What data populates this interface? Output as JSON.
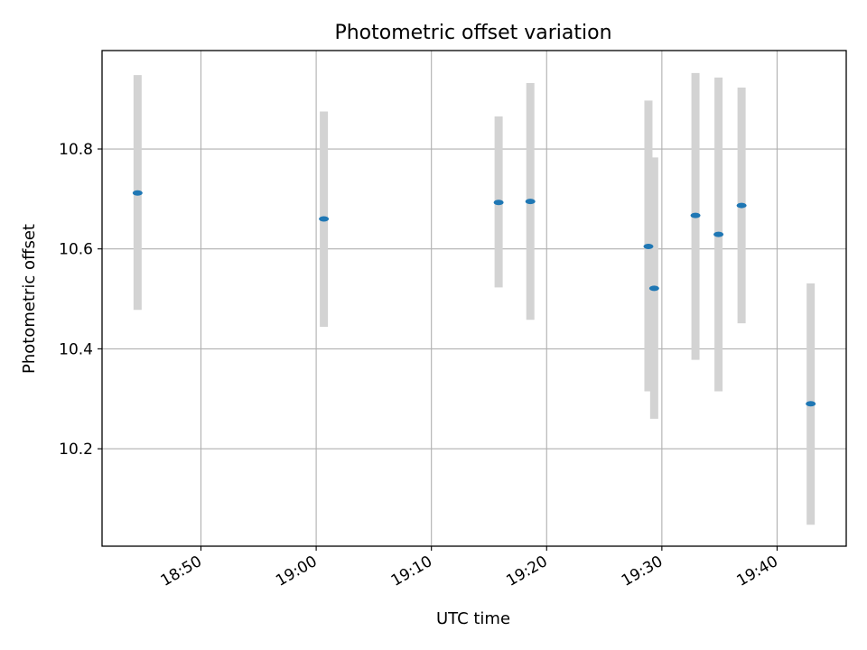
{
  "chart_data": {
    "type": "scatter",
    "title": "Photometric offset variation",
    "xlabel": "UTC time",
    "ylabel": "Photometric offset",
    "x_tick_labels": [
      "18:50",
      "19:00",
      "19:10",
      "19:20",
      "19:30",
      "19:40"
    ],
    "y_tick_labels": [
      "10.2",
      "10.4",
      "10.6",
      "10.8"
    ],
    "y_ticks": [
      10.2,
      10.4,
      10.6,
      10.8
    ],
    "x_ticks": [
      "18:50",
      "19:00",
      "19:10",
      "19:20",
      "19:30",
      "19:40"
    ],
    "xlim": [
      "18:41:25",
      "19:46:00"
    ],
    "ylim": [
      10.005,
      10.997
    ],
    "grid": true,
    "colors": {
      "point": "#1f77b4",
      "errorbar": "#d3d3d3",
      "grid": "#b0b0b0",
      "axes": "#000000"
    },
    "points": [
      {
        "time": "18:44:30",
        "value": 10.712,
        "lower": 10.478,
        "upper": 10.948
      },
      {
        "time": "19:00:40",
        "value": 10.66,
        "lower": 10.444,
        "upper": 10.875
      },
      {
        "time": "19:15:50",
        "value": 10.693,
        "lower": 10.523,
        "upper": 10.865
      },
      {
        "time": "19:18:35",
        "value": 10.695,
        "lower": 10.458,
        "upper": 10.932
      },
      {
        "time": "19:28:50",
        "value": 10.605,
        "lower": 10.315,
        "upper": 10.897
      },
      {
        "time": "19:29:20",
        "value": 10.521,
        "lower": 10.26,
        "upper": 10.783
      },
      {
        "time": "19:32:55",
        "value": 10.667,
        "lower": 10.378,
        "upper": 10.952
      },
      {
        "time": "19:34:55",
        "value": 10.629,
        "lower": 10.315,
        "upper": 10.943
      },
      {
        "time": "19:36:55",
        "value": 10.687,
        "lower": 10.451,
        "upper": 10.923
      },
      {
        "time": "19:42:55",
        "value": 10.29,
        "lower": 10.048,
        "upper": 10.531
      }
    ]
  }
}
